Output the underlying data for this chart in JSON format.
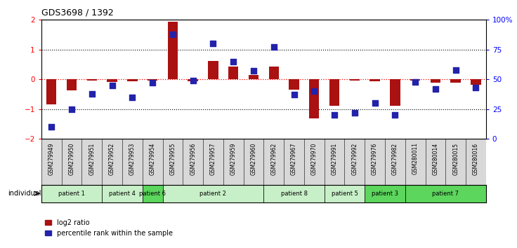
{
  "title": "GDS3698 / 1392",
  "samples": [
    "GSM279949",
    "GSM279950",
    "GSM279951",
    "GSM279952",
    "GSM279953",
    "GSM279954",
    "GSM279955",
    "GSM279956",
    "GSM279957",
    "GSM279959",
    "GSM279960",
    "GSM279962",
    "GSM279967",
    "GSM279970",
    "GSM279991",
    "GSM279992",
    "GSM279976",
    "GSM279982",
    "GSM280011",
    "GSM280014",
    "GSM280015",
    "GSM280016"
  ],
  "log2_ratio": [
    -0.85,
    -0.38,
    -0.05,
    -0.08,
    -0.07,
    -0.05,
    1.93,
    -0.07,
    0.62,
    0.42,
    0.14,
    0.44,
    -0.35,
    -1.32,
    -0.88,
    -0.05,
    -0.06,
    -0.88,
    -0.05,
    -0.1,
    -0.1,
    -0.17
  ],
  "percentile": [
    10,
    25,
    38,
    45,
    35,
    47,
    88,
    49,
    80,
    65,
    57,
    77,
    37,
    40,
    20,
    22,
    30,
    20,
    48,
    42,
    58,
    43
  ],
  "patients": [
    {
      "label": "patient 1",
      "start": 0,
      "end": 3,
      "color": "#c8f0c8"
    },
    {
      "label": "patient 4",
      "start": 3,
      "end": 5,
      "color": "#c8f0c8"
    },
    {
      "label": "patient 6",
      "start": 5,
      "end": 6,
      "color": "#5cd65c"
    },
    {
      "label": "patient 2",
      "start": 6,
      "end": 11,
      "color": "#c8f0c8"
    },
    {
      "label": "patient 8",
      "start": 11,
      "end": 14,
      "color": "#c8f0c8"
    },
    {
      "label": "patient 5",
      "start": 14,
      "end": 16,
      "color": "#c8f0c8"
    },
    {
      "label": "patient 3",
      "start": 16,
      "end": 18,
      "color": "#5cd65c"
    },
    {
      "label": "patient 7",
      "start": 18,
      "end": 22,
      "color": "#5cd65c"
    }
  ],
  "bar_color": "#aa1111",
  "dot_color": "#2222aa",
  "ylim_left": [
    -2,
    2
  ],
  "ylim_right": [
    0,
    100
  ],
  "yticks_left": [
    -2,
    -1,
    0,
    1,
    2
  ],
  "yticks_right": [
    0,
    25,
    50,
    75,
    100
  ],
  "ytick_labels_right": [
    "0",
    "25",
    "50",
    "75",
    "100%"
  ]
}
